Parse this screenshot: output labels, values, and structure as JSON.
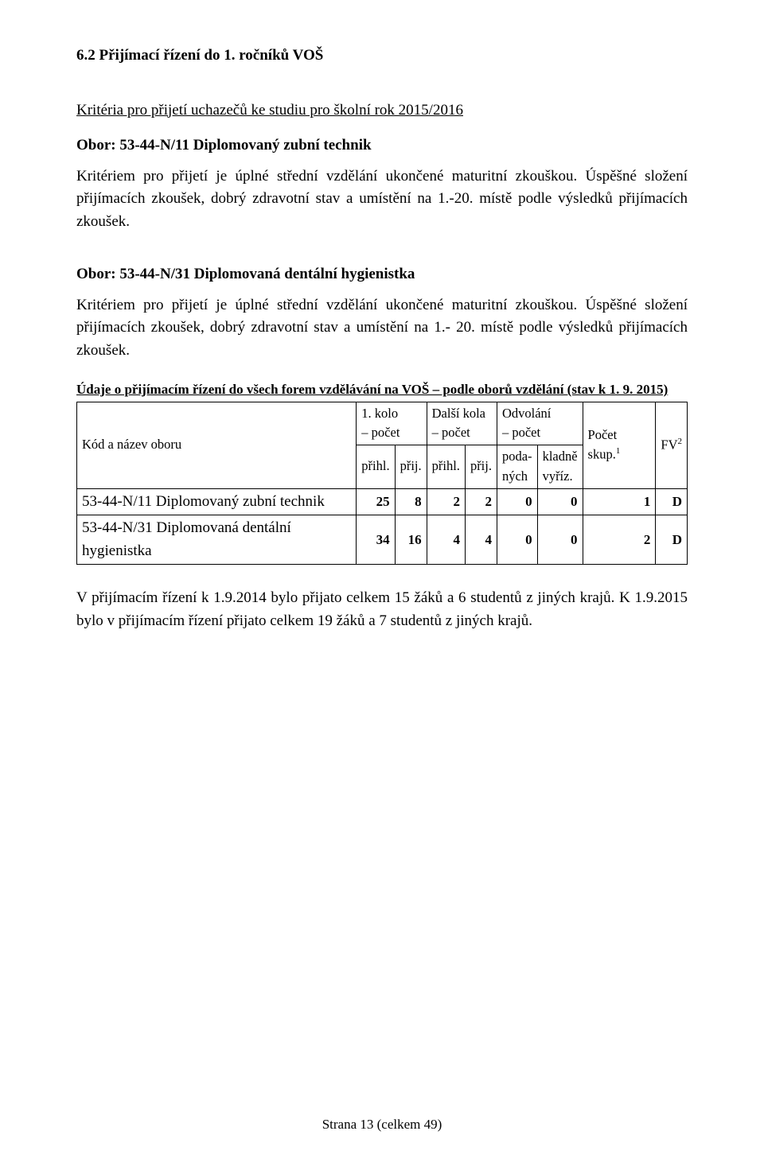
{
  "heading": "6.2 Přijímací řízení do 1. ročníků VOŠ",
  "criteria_title": "Kritéria pro přijetí  uchazečů ke studiu pro školní rok 2015/2016",
  "obor1": {
    "title": "Obor: 53-44-N/11 Diplomovaný zubní technik",
    "text": "Kritériem pro přijetí je úplné střední vzdělání ukončené maturitní zkouškou. Úspěšné složení přijímacích zkoušek, dobrý zdravotní stav a umístění na 1.-20. místě podle výsledků přijímacích zkoušek."
  },
  "obor2": {
    "title": "Obor: 53-44-N/31 Diplomovaná dentální hygienistka",
    "text": "Kritériem pro přijetí je úplné střední vzdělání ukončené maturitní zkouškou. Úspěšné složení přijímacích zkoušek, dobrý zdravotní stav a umístění na 1.- 20. místě podle výsledků přijímacích zkoušek."
  },
  "table": {
    "title": "Údaje o přijímacím řízení do všech forem vzdělávání na VOŠ – podle oborů vzdělání (stav k 1. 9. 2015)",
    "row_header_label": "Kód  a název oboru",
    "col_groups": {
      "g1_top": "1. kolo\n– počet",
      "g2_top": "Další kola\n– počet",
      "g3_top": "Odvolání\n– počet",
      "g4_top": "Počet skup.",
      "g4_sup": "1",
      "g5_top": "FV",
      "g5_sup": "2"
    },
    "sub_cols": {
      "c1": "přihl.",
      "c2": "přij.",
      "c3": "přihl.",
      "c4": "přij.",
      "c5": "poda-\nných",
      "c6": "kladně\nvyříz."
    },
    "rows": [
      {
        "label": "53-44-N/11 Diplomovaný zubní technik",
        "v": [
          "25",
          "8",
          "2",
          "2",
          "0",
          "0",
          "1",
          "D"
        ]
      },
      {
        "label": "53-44-N/31 Diplomovaná dentální hygienistka",
        "v": [
          "34",
          "16",
          "4",
          "4",
          "0",
          "0",
          "2",
          "D"
        ]
      }
    ]
  },
  "closing": "V přijímacím řízení k 1.9.2014 bylo přijato celkem 15 žáků a 6 studentů z jiných krajů. K 1.9.2015 bylo v přijímacím řízení přijato celkem 19 žáků a 7 studentů z jiných krajů.",
  "footer": "Strana 13 (celkem 49)"
}
